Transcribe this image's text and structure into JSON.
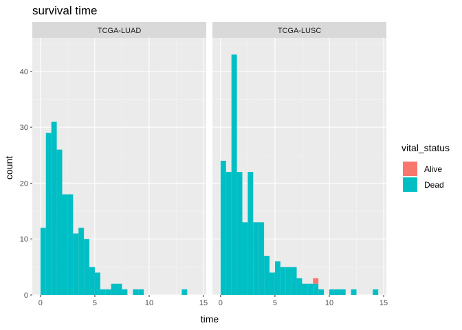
{
  "chart_data": {
    "type": "bar",
    "title": "survival time",
    "xlabel": "time",
    "ylabel": "count",
    "xlim": [
      -0.75,
      15.25
    ],
    "ylim": [
      0,
      46
    ],
    "x_ticks": [
      0,
      5,
      10,
      15
    ],
    "y_ticks": [
      0,
      10,
      20,
      30,
      40
    ],
    "bin_width": 0.5,
    "grid": true,
    "legend": {
      "title": "vital_status",
      "position": "right",
      "entries": [
        {
          "name": "Alive",
          "color": "#F8766D"
        },
        {
          "name": "Dead",
          "color": "#00BFC4"
        }
      ]
    },
    "panels": [
      {
        "label": "TCGA-LUAD",
        "series": [
          {
            "name": "Dead",
            "color": "#00BFC4",
            "bin_starts": [
              0,
              0.5,
              1,
              1.5,
              2,
              2.5,
              3,
              3.5,
              4,
              4.5,
              5,
              5.5,
              6,
              6.5,
              7,
              7.5,
              8,
              8.5,
              9,
              9.5,
              10,
              10.5,
              11,
              11.5,
              12,
              12.5,
              13,
              13.5,
              14,
              14.5
            ],
            "values": [
              12,
              29,
              31,
              26,
              18,
              18,
              11,
              12,
              10,
              5,
              4,
              1,
              1,
              2,
              2,
              1,
              0,
              1,
              1,
              0,
              0,
              0,
              0,
              0,
              0,
              0,
              1,
              0,
              0,
              0
            ]
          },
          {
            "name": "Alive",
            "color": "#F8766D",
            "bin_starts": [],
            "values": []
          }
        ]
      },
      {
        "label": "TCGA-LUSC",
        "series": [
          {
            "name": "Dead",
            "color": "#00BFC4",
            "bin_starts": [
              0,
              0.5,
              1,
              1.5,
              2,
              2.5,
              3,
              3.5,
              4,
              4.5,
              5,
              5.5,
              6,
              6.5,
              7,
              7.5,
              8,
              8.5,
              9,
              9.5,
              10,
              10.5,
              11,
              11.5,
              12,
              12.5,
              13,
              13.5,
              14,
              14.5
            ],
            "values": [
              24,
              22,
              43,
              22,
              13,
              22,
              13,
              13,
              7,
              4,
              6,
              5,
              5,
              5,
              3,
              2,
              2,
              2,
              1,
              0,
              1,
              1,
              1,
              0,
              1,
              0,
              0,
              0,
              1,
              0
            ]
          },
          {
            "name": "Alive",
            "color": "#F8766D",
            "bin_starts": [
              8.5
            ],
            "values": [
              1
            ]
          }
        ]
      }
    ]
  }
}
